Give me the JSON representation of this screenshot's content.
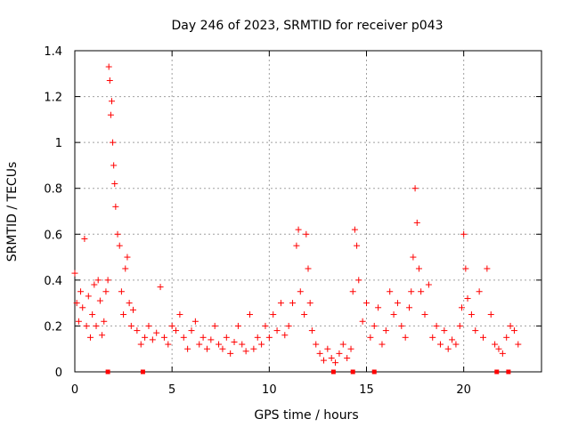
{
  "chart_data": {
    "type": "scatter",
    "title": "Day 246 of 2023, SRMTID for receiver p043",
    "xlabel": "GPS time / hours",
    "ylabel": "SRMTID / TECUs",
    "xlim": [
      0,
      24
    ],
    "ylim": [
      0,
      1.4
    ],
    "grid": true,
    "marker": "+",
    "color": "#ff0000",
    "x_ticks": [
      0,
      5,
      10,
      15,
      20
    ],
    "y_ticks": [
      0,
      0.2,
      0.4,
      0.6,
      0.8,
      1,
      1.2,
      1.4
    ],
    "x_tick_labels": [
      "0",
      "5",
      "10",
      "15",
      "20"
    ],
    "y_tick_labels": [
      "0",
      "0.2",
      "0.4",
      "0.6",
      "0.8",
      "1",
      "1.2",
      "1.4"
    ],
    "series": [
      {
        "name": "SRMTID",
        "x": [
          0.0,
          0.1,
          0.2,
          0.3,
          0.4,
          0.5,
          0.6,
          0.7,
          0.8,
          0.9,
          1.0,
          1.1,
          1.2,
          1.3,
          1.4,
          1.5,
          1.6,
          1.7,
          1.75,
          1.8,
          1.85,
          1.9,
          1.95,
          2.0,
          2.05,
          2.1,
          2.2,
          2.3,
          2.4,
          2.5,
          2.6,
          2.7,
          2.8,
          2.9,
          3.0,
          3.2,
          3.4,
          3.6,
          3.8,
          4.0,
          4.2,
          4.4,
          4.6,
          4.8,
          5.0,
          5.2,
          5.4,
          5.6,
          5.8,
          6.0,
          6.2,
          6.4,
          6.6,
          6.8,
          7.0,
          7.2,
          7.4,
          7.6,
          7.8,
          8.0,
          8.2,
          8.4,
          8.6,
          8.8,
          9.0,
          9.2,
          9.4,
          9.6,
          9.8,
          10.0,
          10.2,
          10.4,
          10.6,
          10.8,
          11.0,
          11.2,
          11.4,
          11.5,
          11.6,
          11.8,
          11.9,
          12.0,
          12.1,
          12.2,
          12.4,
          12.6,
          12.8,
          13.0,
          13.2,
          13.4,
          13.6,
          13.8,
          14.0,
          14.2,
          14.3,
          14.4,
          14.5,
          14.6,
          14.8,
          15.0,
          15.2,
          15.4,
          15.6,
          15.8,
          16.0,
          16.2,
          16.4,
          16.6,
          16.8,
          17.0,
          17.2,
          17.3,
          17.4,
          17.5,
          17.6,
          17.7,
          17.8,
          18.0,
          18.2,
          18.4,
          18.6,
          18.8,
          19.0,
          19.2,
          19.4,
          19.6,
          19.8,
          19.9,
          20.0,
          20.1,
          20.2,
          20.4,
          20.6,
          20.8,
          21.0,
          21.2,
          21.4,
          21.6,
          21.8,
          22.0,
          22.2,
          22.4,
          22.6,
          22.8
        ],
        "y": [
          0.43,
          0.3,
          0.22,
          0.35,
          0.28,
          0.58,
          0.2,
          0.33,
          0.15,
          0.25,
          0.38,
          0.2,
          0.4,
          0.31,
          0.16,
          0.22,
          0.35,
          0.4,
          1.33,
          1.27,
          1.12,
          1.18,
          1.0,
          0.9,
          0.82,
          0.72,
          0.6,
          0.55,
          0.35,
          0.25,
          0.45,
          0.5,
          0.3,
          0.2,
          0.27,
          0.18,
          0.12,
          0.15,
          0.2,
          0.14,
          0.17,
          0.37,
          0.15,
          0.12,
          0.2,
          0.18,
          0.25,
          0.15,
          0.1,
          0.18,
          0.22,
          0.12,
          0.15,
          0.1,
          0.14,
          0.2,
          0.12,
          0.1,
          0.15,
          0.08,
          0.13,
          0.2,
          0.12,
          0.09,
          0.25,
          0.1,
          0.15,
          0.12,
          0.2,
          0.15,
          0.25,
          0.18,
          0.3,
          0.16,
          0.2,
          0.3,
          0.55,
          0.62,
          0.35,
          0.25,
          0.6,
          0.45,
          0.3,
          0.18,
          0.12,
          0.08,
          0.05,
          0.1,
          0.06,
          0.04,
          0.08,
          0.12,
          0.06,
          0.1,
          0.35,
          0.62,
          0.55,
          0.4,
          0.22,
          0.3,
          0.15,
          0.2,
          0.28,
          0.12,
          0.18,
          0.35,
          0.25,
          0.3,
          0.2,
          0.15,
          0.28,
          0.35,
          0.5,
          0.8,
          0.65,
          0.45,
          0.35,
          0.25,
          0.38,
          0.15,
          0.2,
          0.12,
          0.18,
          0.1,
          0.14,
          0.12,
          0.2,
          0.28,
          0.6,
          0.45,
          0.32,
          0.25,
          0.18,
          0.35,
          0.15,
          0.45,
          0.25,
          0.12,
          0.1,
          0.08,
          0.15,
          0.2,
          0.18,
          0.12
        ]
      }
    ],
    "zero_markers_x": [
      1.7,
      3.5,
      13.3,
      14.3,
      15.4,
      21.7,
      22.3
    ]
  }
}
